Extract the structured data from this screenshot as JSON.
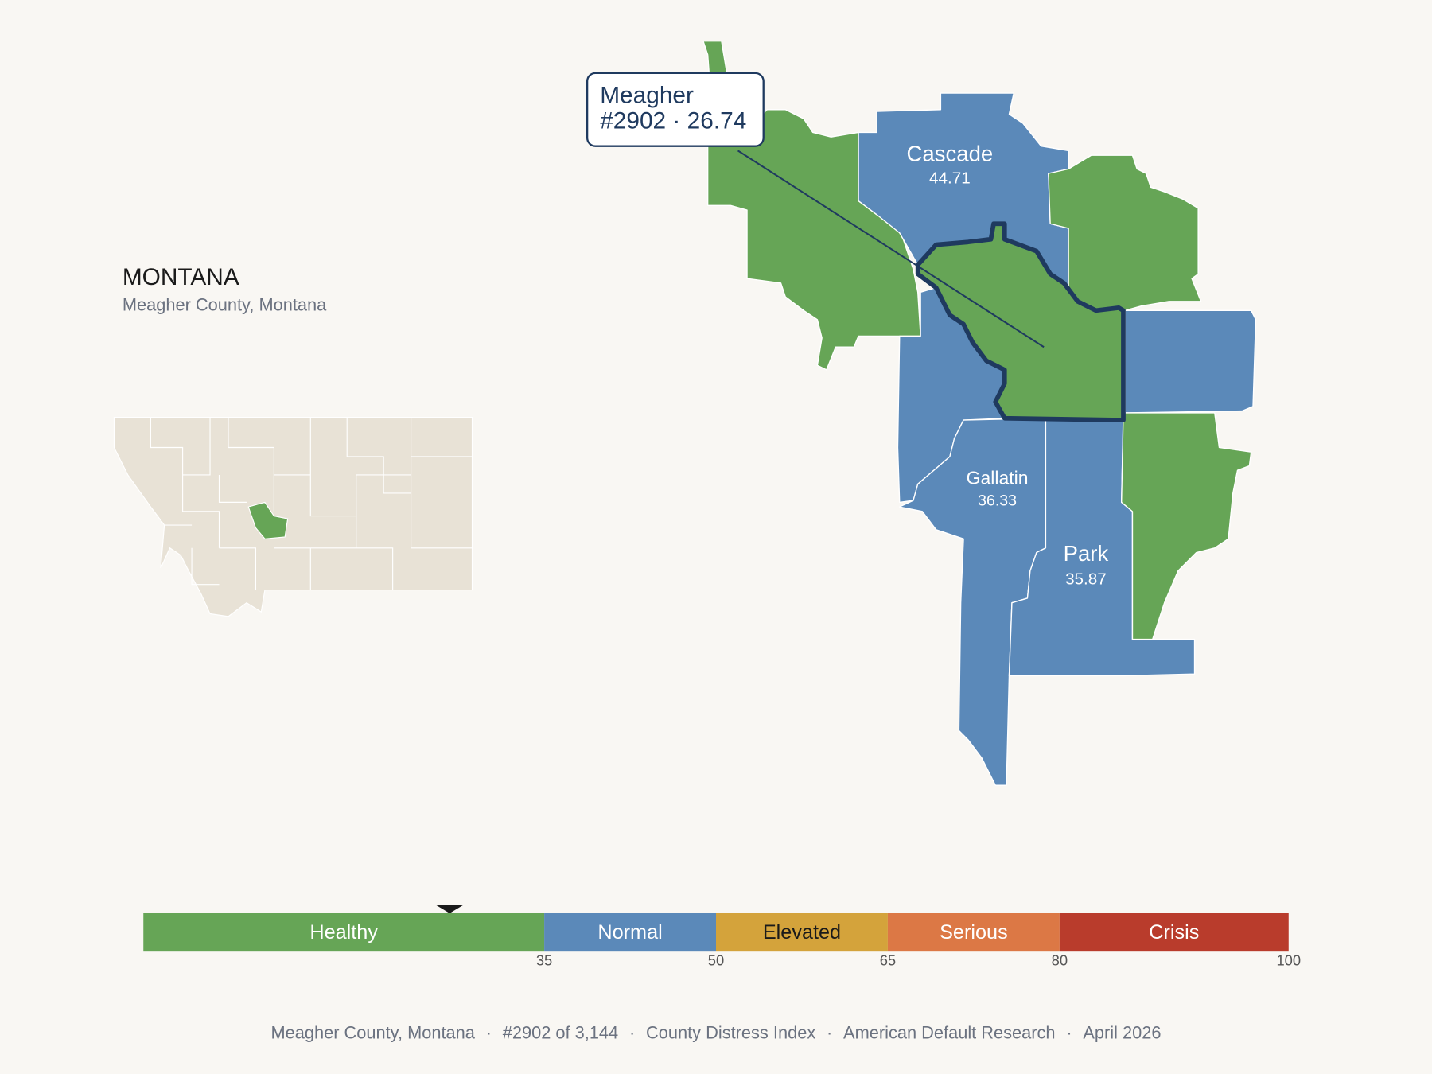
{
  "header": {
    "title": "MONTANA",
    "subtitle": "Meagher County, Montana"
  },
  "highlight": {
    "name": "Meagher",
    "label": "#2902 · 26.74",
    "score": 26.74
  },
  "counties": [
    {
      "name": "Cascade",
      "score": 44.71
    },
    {
      "name": "Gallatin",
      "score": 36.33
    },
    {
      "name": "Park",
      "score": 35.87
    }
  ],
  "scale": {
    "range": [
      0,
      100
    ],
    "segments": [
      {
        "label": "Healthy",
        "from": 0,
        "to": 35,
        "color": "#66a556",
        "text_color": "#ffffff"
      },
      {
        "label": "Normal",
        "from": 35,
        "to": 50,
        "color": "#5b89b9",
        "text_color": "#ffffff"
      },
      {
        "label": "Elevated",
        "from": 50,
        "to": 65,
        "color": "#d4a33b",
        "text_color": "#1a1a1a"
      },
      {
        "label": "Serious",
        "from": 65,
        "to": 80,
        "color": "#dc7845",
        "text_color": "#ffffff"
      },
      {
        "label": "Crisis",
        "from": 80,
        "to": 100,
        "color": "#b93c2c",
        "text_color": "#ffffff"
      }
    ],
    "ticks": [
      35,
      50,
      65,
      80,
      100
    ]
  },
  "footer": {
    "items": [
      "Meagher County, Montana",
      "#2902 of 3,144",
      "County Distress Index",
      "American Default Research",
      "April 2026"
    ],
    "separator": "·"
  }
}
